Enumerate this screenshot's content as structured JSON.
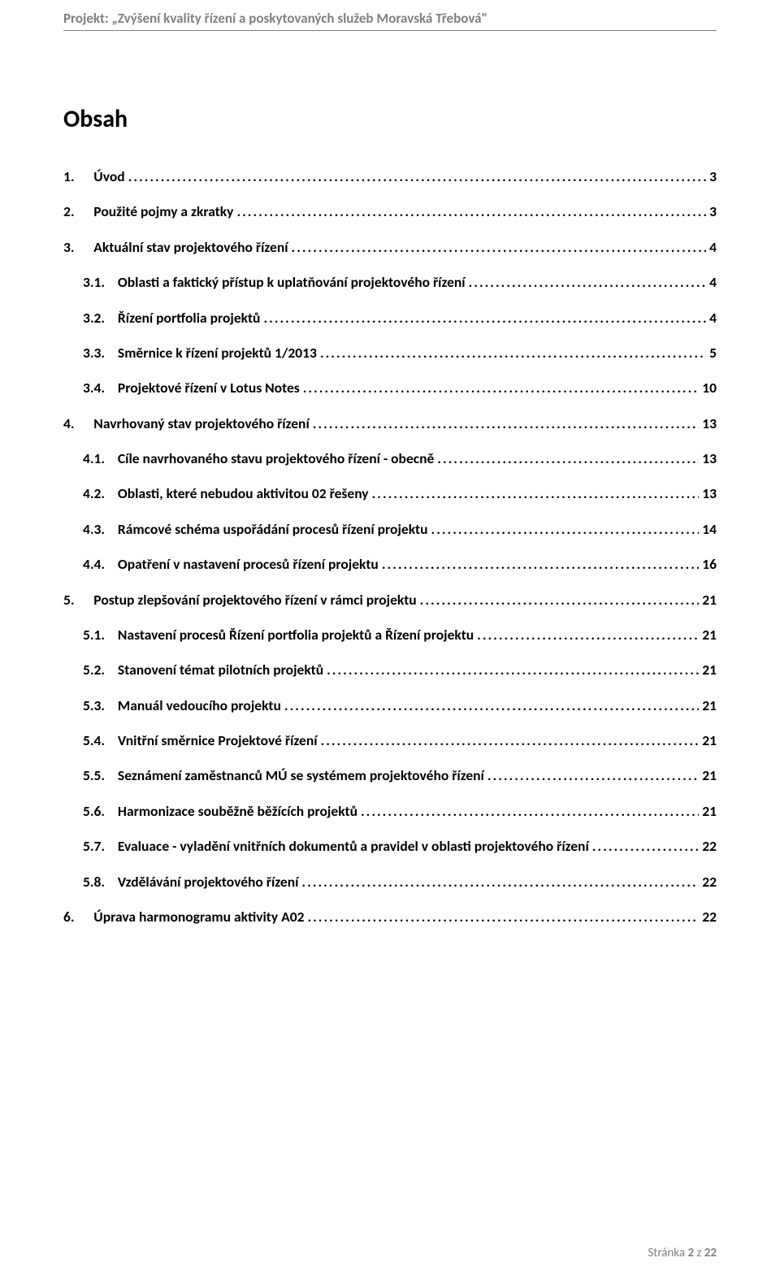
{
  "colors": {
    "text": "#000000",
    "muted": "#7f7f7f",
    "rule": "#7f7f7f",
    "background": "#ffffff"
  },
  "typography": {
    "family": "Calibri",
    "header_size_pt": 12,
    "toc_title_size_pt": 22,
    "toc_row_size_pt": 13,
    "footer_size_pt": 11
  },
  "header": {
    "project_line": "Projekt: „Zvýšení kvality řízení a poskytovaných služeb Moravská Třebová\""
  },
  "toc": {
    "title": "Obsah",
    "entries": [
      {
        "num": "1.",
        "label": "Úvod",
        "page": "3",
        "indent": 0
      },
      {
        "num": "2.",
        "label": "Použité pojmy a zkratky",
        "page": "3",
        "indent": 0
      },
      {
        "num": "3.",
        "label": "Aktuální stav projektového řízení",
        "page": "4",
        "indent": 0
      },
      {
        "num": "3.1.",
        "label": "Oblasti a faktický přístup k uplatňování projektového řízení",
        "page": "4",
        "indent": 1
      },
      {
        "num": "3.2.",
        "label": "Řízení portfolia projektů",
        "page": "4",
        "indent": 1
      },
      {
        "num": "3.3.",
        "label": "Směrnice k řízení projektů 1/2013",
        "page": "5",
        "indent": 1
      },
      {
        "num": "3.4.",
        "label": "Projektové řízení v Lotus Notes",
        "page": "10",
        "indent": 1
      },
      {
        "num": "4.",
        "label": "Navrhovaný stav projektového řízení",
        "page": "13",
        "indent": 0
      },
      {
        "num": "4.1.",
        "label": "Cíle navrhovaného stavu projektového řízení - obecně",
        "page": "13",
        "indent": 1
      },
      {
        "num": "4.2.",
        "label": "Oblasti, které nebudou aktivitou 02 řešeny",
        "page": "13",
        "indent": 1
      },
      {
        "num": "4.3.",
        "label": "Rámcové schéma uspořádání procesů řízení projektu",
        "page": "14",
        "indent": 1
      },
      {
        "num": "4.4.",
        "label": "Opatření v nastavení procesů řízení projektu",
        "page": "16",
        "indent": 1
      },
      {
        "num": "5.",
        "label": "Postup zlepšování projektového řízení v rámci projektu",
        "page": "21",
        "indent": 0
      },
      {
        "num": "5.1.",
        "label": "Nastavení procesů Řízení portfolia projektů a Řízení projektu",
        "page": "21",
        "indent": 1
      },
      {
        "num": "5.2.",
        "label": "Stanovení témat pilotních projektů",
        "page": "21",
        "indent": 1
      },
      {
        "num": "5.3.",
        "label": "Manuál vedoucího projektu",
        "page": "21",
        "indent": 1
      },
      {
        "num": "5.4.",
        "label": "Vnitřní směrnice Projektové řízení",
        "page": "21",
        "indent": 1
      },
      {
        "num": "5.5.",
        "label": "Seznámení zaměstnanců MÚ se systémem projektového řízení",
        "page": "21",
        "indent": 1
      },
      {
        "num": "5.6.",
        "label": "Harmonizace souběžně běžících projektů",
        "page": "21",
        "indent": 1
      },
      {
        "num": "5.7.",
        "label": "Evaluace  - vyladění vnitřních dokumentů a pravidel v oblasti projektového řízení",
        "page": "22",
        "indent": 1
      },
      {
        "num": "5.8.",
        "label": "Vzdělávání projektového řízení",
        "page": "22",
        "indent": 1
      },
      {
        "num": "6.",
        "label": "Úprava harmonogramu aktivity A02",
        "page": "22",
        "indent": 0
      }
    ]
  },
  "footer": {
    "prefix": "Stránka ",
    "current": "2",
    "sep": " z ",
    "total": "22"
  }
}
